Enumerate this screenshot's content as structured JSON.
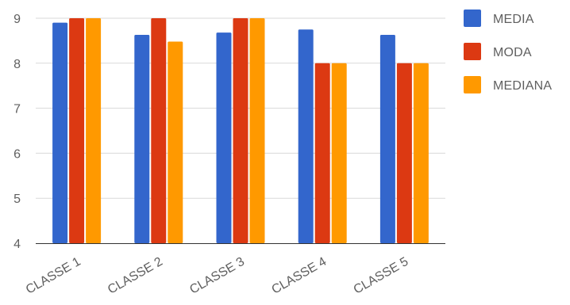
{
  "chart_data": {
    "type": "bar",
    "categories": [
      "CLASSE 1",
      "CLASSE 2",
      "CLASSE 3",
      "CLASSE 4",
      "CLASSE 5"
    ],
    "series": [
      {
        "name": "MEDIA",
        "values": [
          8.9,
          8.63,
          8.68,
          8.75,
          8.63
        ],
        "color": "#3366cc"
      },
      {
        "name": "MODA",
        "values": [
          9,
          9,
          9,
          8,
          8
        ],
        "color": "#dc3912"
      },
      {
        "name": "MEDIANA",
        "values": [
          9,
          8.48,
          9,
          8,
          8
        ],
        "color": "#ff9900"
      }
    ],
    "ylim": [
      4,
      9
    ],
    "yticks": [
      4,
      5,
      6,
      7,
      8,
      9
    ],
    "grid": true,
    "legend": "right"
  },
  "colors": {
    "grid": "#d9d9d9",
    "axis": "#333333",
    "text": "#5f5f5f"
  }
}
